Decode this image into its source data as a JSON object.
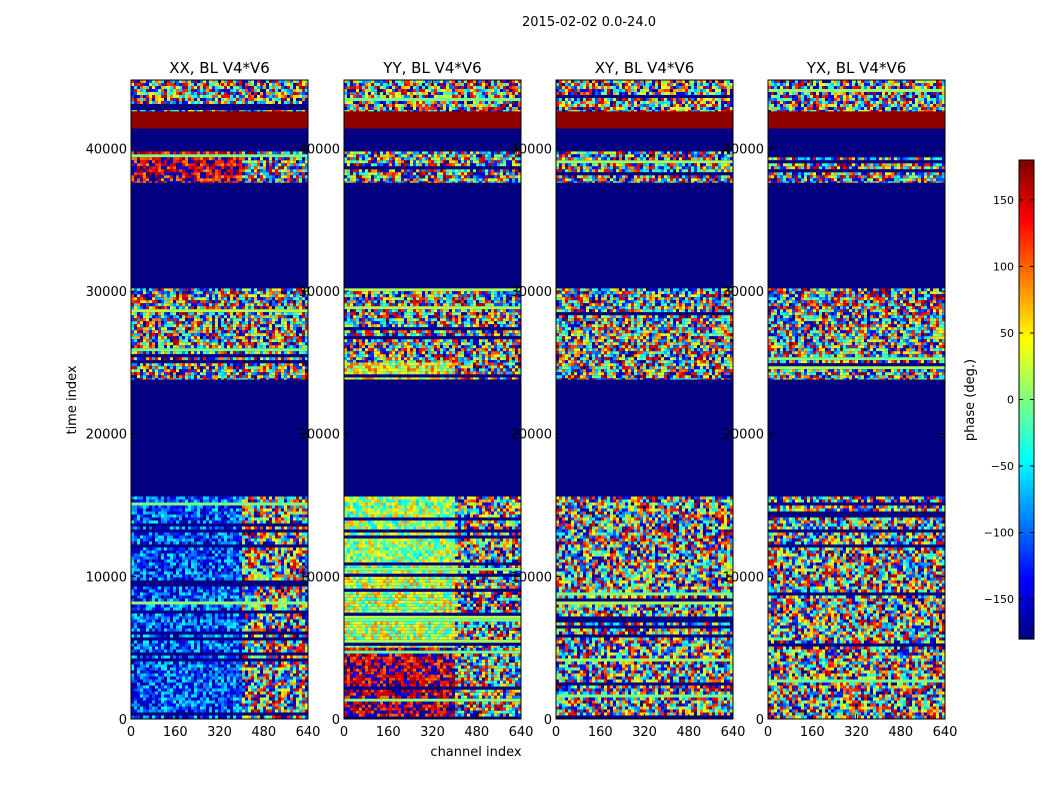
{
  "figure": {
    "suptitle": "2015-02-02 0.0-24.0",
    "xlabel": "channel index",
    "ylabel": "time index"
  },
  "chart_data": [
    {
      "type": "heatmap",
      "title": "XX, BL V4*V6",
      "x_range": [
        0,
        640
      ],
      "y_range": [
        0,
        44800
      ],
      "x_ticks": [
        "0",
        "160",
        "320",
        "480",
        "640"
      ],
      "y_ticks": [
        "0",
        "10000",
        "20000",
        "30000",
        "40000"
      ],
      "style": "xx",
      "blocks": [
        {
          "y": [
            0,
            15600
          ],
          "kind": "noise",
          "bias": -110
        },
        {
          "y": [
            15600,
            23800
          ],
          "kind": "solid",
          "value": -180
        },
        {
          "y": [
            23800,
            30200
          ],
          "kind": "noise",
          "bias": null
        },
        {
          "y": [
            30200,
            37600
          ],
          "kind": "solid",
          "value": -180
        },
        {
          "y": [
            37600,
            39800
          ],
          "kind": "noise",
          "bias": 150
        },
        {
          "y": [
            39800,
            41400
          ],
          "kind": "solid",
          "value": -180
        },
        {
          "y": [
            41400,
            42600
          ],
          "kind": "solid",
          "value": 175
        },
        {
          "y": [
            42600,
            44800
          ],
          "kind": "noise",
          "bias": null
        }
      ]
    },
    {
      "type": "heatmap",
      "title": "YY, BL V4*V6",
      "x_range": [
        0,
        640
      ],
      "y_range": [
        0,
        44800
      ],
      "x_ticks": [
        "0",
        "160",
        "320",
        "480",
        "640"
      ],
      "y_ticks": [
        "0",
        "10000",
        "20000",
        "30000",
        "40000"
      ],
      "style": "yy",
      "blocks": [
        {
          "y": [
            0,
            5000
          ],
          "kind": "noise",
          "bias": 160
        },
        {
          "y": [
            5000,
            10600
          ],
          "kind": "noise",
          "bias": 20
        },
        {
          "y": [
            10600,
            15600
          ],
          "kind": "noise",
          "bias": 10
        },
        {
          "y": [
            15600,
            23800
          ],
          "kind": "solid",
          "value": -180
        },
        {
          "y": [
            23800,
            25000
          ],
          "kind": "noise",
          "bias": 40
        },
        {
          "y": [
            25000,
            30200
          ],
          "kind": "noise",
          "bias": null
        },
        {
          "y": [
            30200,
            37600
          ],
          "kind": "solid",
          "value": -180
        },
        {
          "y": [
            37600,
            39800
          ],
          "kind": "noise",
          "bias": null
        },
        {
          "y": [
            39800,
            41400
          ],
          "kind": "solid",
          "value": -180
        },
        {
          "y": [
            41400,
            42600
          ],
          "kind": "solid",
          "value": 175
        },
        {
          "y": [
            42600,
            44800
          ],
          "kind": "noise",
          "bias": null
        }
      ]
    },
    {
      "type": "heatmap",
      "title": "XY, BL V4*V6",
      "x_range": [
        0,
        640
      ],
      "y_range": [
        0,
        44800
      ],
      "x_ticks": [
        "0",
        "160",
        "320",
        "480",
        "640"
      ],
      "y_ticks": [
        "0",
        "10000",
        "20000",
        "30000",
        "40000"
      ],
      "style": "xy",
      "blocks": [
        {
          "y": [
            0,
            15600
          ],
          "kind": "noise",
          "bias": null
        },
        {
          "y": [
            15600,
            23800
          ],
          "kind": "solid",
          "value": -180
        },
        {
          "y": [
            23800,
            30200
          ],
          "kind": "noise",
          "bias": null
        },
        {
          "y": [
            30200,
            37600
          ],
          "kind": "solid",
          "value": -180
        },
        {
          "y": [
            37600,
            39800
          ],
          "kind": "noise",
          "bias": null
        },
        {
          "y": [
            39800,
            41400
          ],
          "kind": "solid",
          "value": -180
        },
        {
          "y": [
            41400,
            42600
          ],
          "kind": "solid",
          "value": 175
        },
        {
          "y": [
            42600,
            44800
          ],
          "kind": "noise",
          "bias": null
        }
      ]
    },
    {
      "type": "heatmap",
      "title": "YX, BL V4*V6",
      "x_range": [
        0,
        640
      ],
      "y_range": [
        0,
        44800
      ],
      "x_ticks": [
        "0",
        "160",
        "320",
        "480",
        "640"
      ],
      "y_ticks": [
        "0",
        "10000",
        "20000",
        "30000",
        "40000"
      ],
      "style": "yx",
      "blocks": [
        {
          "y": [
            0,
            15600
          ],
          "kind": "noise",
          "bias": null
        },
        {
          "y": [
            15600,
            23800
          ],
          "kind": "solid",
          "value": -180
        },
        {
          "y": [
            23800,
            30200
          ],
          "kind": "noise",
          "bias": null
        },
        {
          "y": [
            30200,
            37600
          ],
          "kind": "solid",
          "value": -180
        },
        {
          "y": [
            37600,
            39800
          ],
          "kind": "noise",
          "bias": null
        },
        {
          "y": [
            39800,
            41400
          ],
          "kind": "solid",
          "value": -180
        },
        {
          "y": [
            41400,
            42600
          ],
          "kind": "solid",
          "value": 175
        },
        {
          "y": [
            42600,
            44800
          ],
          "kind": "noise",
          "bias": null
        }
      ]
    }
  ],
  "colorbar": {
    "label": "phase (deg.)",
    "range": [
      -180,
      180
    ],
    "ticks": [
      "150",
      "100",
      "50",
      "0",
      "−50",
      "−100",
      "−150"
    ],
    "tick_values": [
      150,
      100,
      50,
      0,
      -50,
      -100,
      -150
    ],
    "colormap": "jet"
  }
}
